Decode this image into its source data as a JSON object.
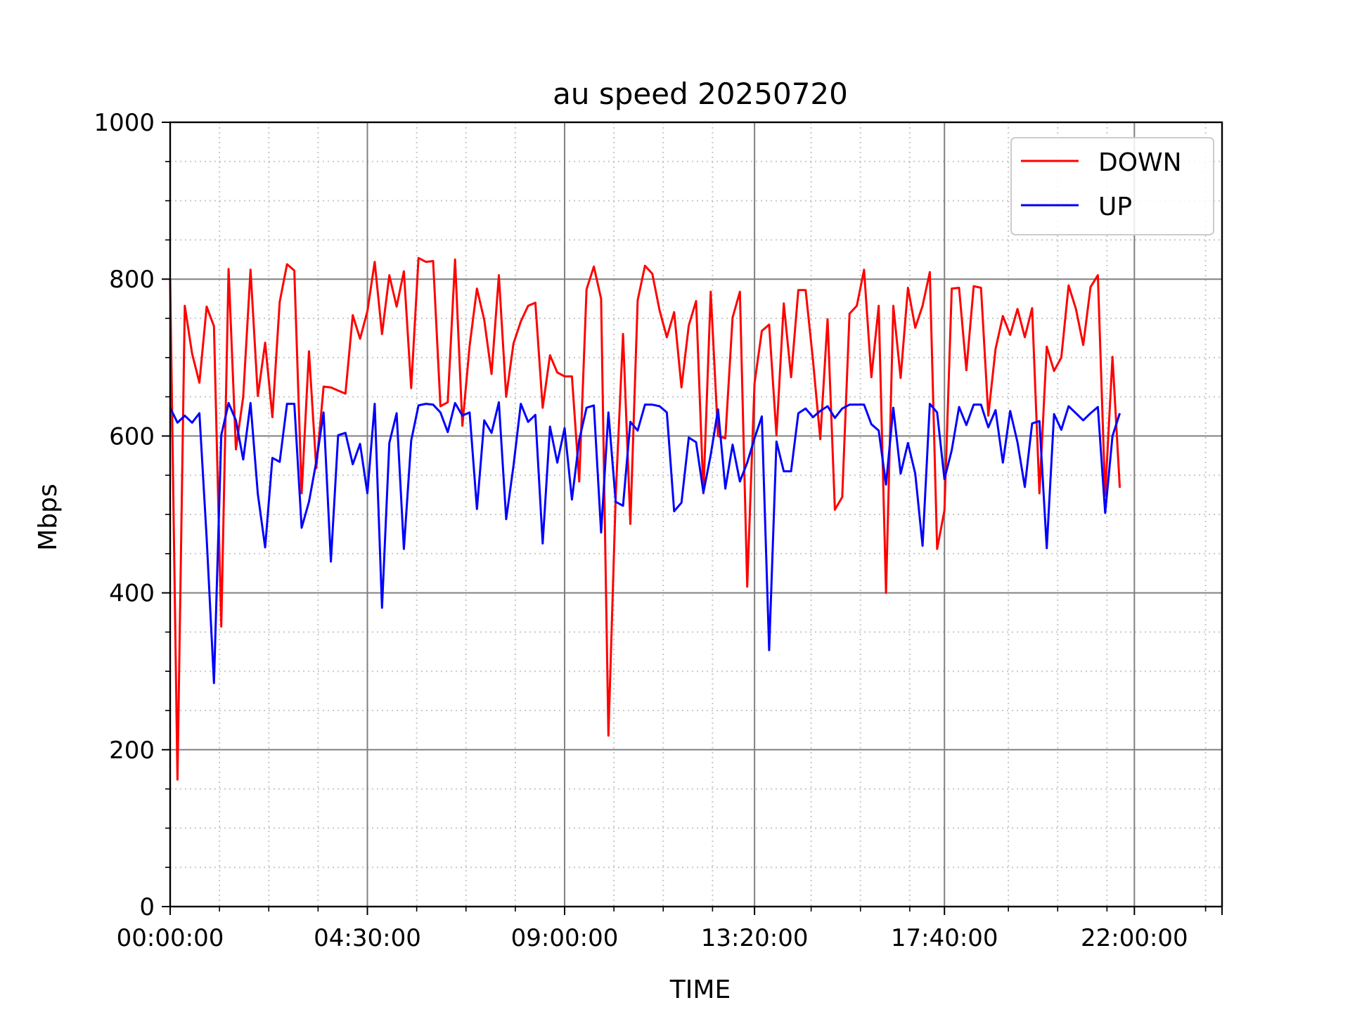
{
  "chart_data": {
    "type": "line",
    "title": "au speed 20250720",
    "xlabel": "TIME",
    "ylabel": "Mbps",
    "ylim": [
      0,
      1000
    ],
    "yticks": [
      0,
      200,
      400,
      600,
      800,
      1000
    ],
    "xlim": [
      "00:00:00",
      "24:00:00"
    ],
    "xticks": [
      "00:00:00",
      "04:30:00",
      "09:00:00",
      "13:20:00",
      "17:40:00",
      "22:00:00"
    ],
    "sample_interval_minutes": 10,
    "grid": true,
    "legend_position": "top-right",
    "series": [
      {
        "name": "DOWN",
        "color": "#ff0000",
        "values": [
          800,
          162,
          766,
          705,
          668,
          765,
          740,
          357,
          813,
          583,
          650,
          812,
          651,
          719,
          624,
          771,
          819,
          811,
          527,
          708,
          559,
          663,
          662,
          658,
          654,
          754,
          724,
          759,
          822,
          730,
          805,
          765,
          810,
          661,
          827,
          822,
          823,
          638,
          643,
          825,
          613,
          715,
          788,
          748,
          679,
          805,
          650,
          718,
          746,
          766,
          770,
          636,
          703,
          681,
          676,
          676,
          542,
          787,
          816,
          775,
          218,
          524,
          730,
          488,
          773,
          817,
          807,
          760,
          726,
          758,
          662,
          741,
          772,
          527,
          784,
          600,
          597,
          751,
          784,
          408,
          667,
          734,
          742,
          601,
          769,
          675,
          786,
          786,
          697,
          596,
          749,
          506,
          522,
          756,
          766,
          812,
          675,
          766,
          400,
          766,
          674,
          789,
          738,
          766,
          809,
          456,
          505,
          788,
          789,
          684,
          791,
          789,
          626,
          711,
          753,
          729,
          762,
          726,
          763,
          527,
          714,
          683,
          700,
          792,
          762,
          716,
          790,
          805,
          524,
          701,
          534
        ]
      },
      {
        "name": "UP",
        "color": "#0000ff",
        "values": [
          636,
          617,
          626,
          617,
          629,
          470,
          285,
          601,
          642,
          620,
          570,
          642,
          526,
          458,
          572,
          567,
          641,
          641,
          483,
          516,
          567,
          630,
          440,
          601,
          604,
          564,
          590,
          527,
          641,
          381,
          591,
          629,
          456,
          594,
          639,
          641,
          640,
          630,
          605,
          642,
          626,
          630,
          507,
          620,
          604,
          643,
          494,
          562,
          641,
          618,
          627,
          463,
          612,
          566,
          610,
          519,
          595,
          636,
          639,
          477,
          630,
          516,
          511,
          618,
          607,
          640,
          640,
          638,
          630,
          504,
          515,
          598,
          592,
          528,
          576,
          634,
          533,
          589,
          542,
          566,
          597,
          625,
          327,
          593,
          555,
          555,
          629,
          635,
          624,
          632,
          638,
          623,
          635,
          640,
          640,
          640,
          615,
          607,
          538,
          636,
          552,
          591,
          552,
          460,
          641,
          630,
          545,
          582,
          637,
          614,
          640,
          640,
          611,
          633,
          566,
          632,
          592,
          535,
          616,
          619,
          457,
          628,
          608,
          638,
          629,
          620,
          629,
          637,
          502,
          600,
          629
        ]
      }
    ]
  }
}
